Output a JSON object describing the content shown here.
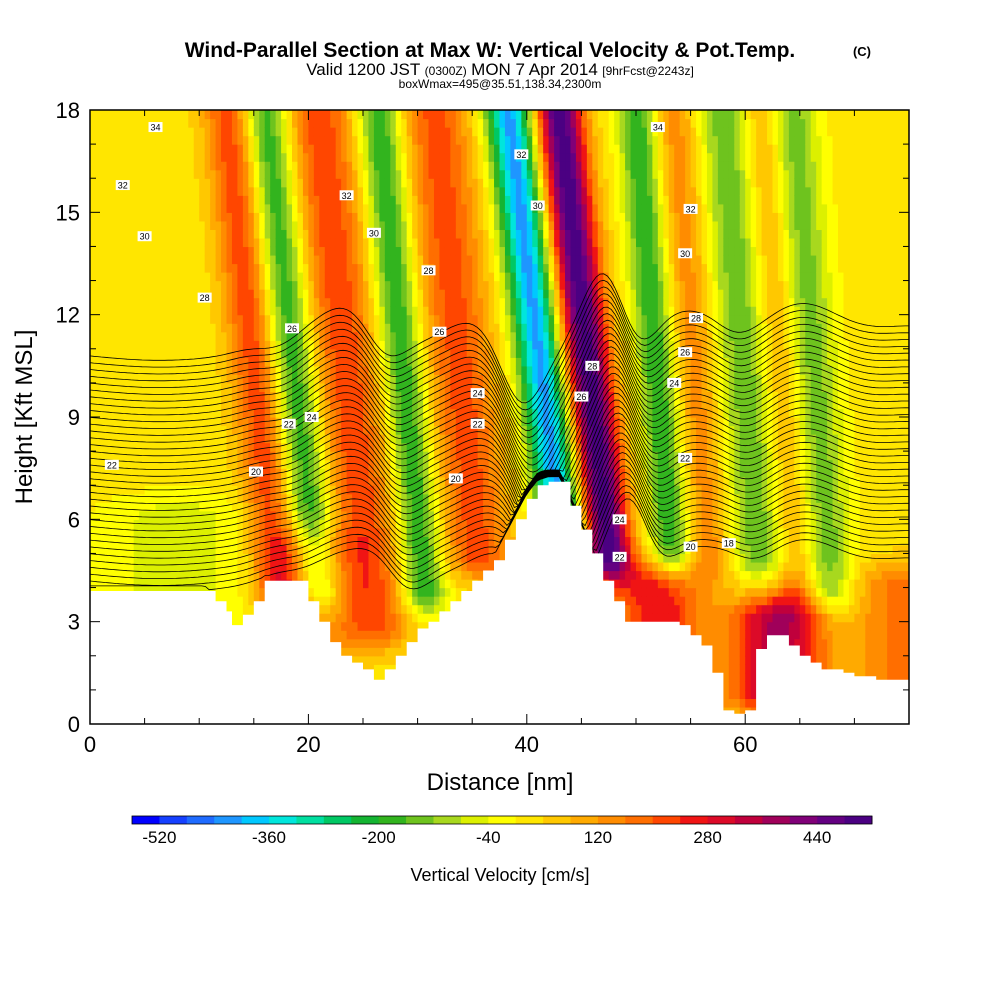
{
  "chart_data": {
    "type": "heatmap",
    "title": "Wind-Parallel Section at Max W: Vertical Velocity & Pot.Temp.",
    "title_tag": "(C)",
    "subtitle_main": "Valid 1200 JST",
    "subtitle_utc": "(0300Z)",
    "subtitle_date": "MON 7 Apr 2014",
    "subtitle_fcst": "[9hrFcst@2243z]",
    "subtitle2": "boxWmax=495@35.51,138.34,2300m",
    "xlabel": "Distance [nm]",
    "ylabel": "Height [Kft MSL]",
    "xlim": [
      0,
      75
    ],
    "ylim": [
      0,
      18
    ],
    "xticks": [
      "0",
      "20",
      "40",
      "60"
    ],
    "yticks": [
      "0",
      "3",
      "6",
      "9",
      "12",
      "15",
      "18"
    ],
    "colorbar": {
      "label": "Vertical Velocity [cm/s]",
      "min": -560,
      "max": 520,
      "step": 40,
      "ticks": [
        "-520",
        "-360",
        "-200",
        "-40",
        "120",
        "280",
        "440"
      ],
      "colors": [
        "#0000ff",
        "#1540ff",
        "#1f6bff",
        "#1e96ff",
        "#00c8ff",
        "#00e6dc",
        "#00dfa0",
        "#00c864",
        "#14b432",
        "#32b41e",
        "#6ec31e",
        "#a8d81e",
        "#dcf000",
        "#ffff00",
        "#ffe600",
        "#ffc800",
        "#ffaa00",
        "#ff8c00",
        "#ff6e00",
        "#ff4600",
        "#f01414",
        "#dc0a28",
        "#c0003c",
        "#a0005a",
        "#800078",
        "#640082",
        "#4b0082"
      ]
    },
    "velocity_features": [
      {
        "x": 17,
        "w": 580,
        "zlo": 4,
        "zhi": 18,
        "sigma": 1.6,
        "tilt": 0.34,
        "amp": 210,
        "type": "updraft"
      },
      {
        "x": 20.5,
        "w": 600,
        "zlo": 4,
        "zhi": 18,
        "sigma": 1.5,
        "tilt": 0.34,
        "amp": -230,
        "type": "downdraft"
      },
      {
        "x": 25.3,
        "w": 600,
        "zlo": 3,
        "zhi": 18,
        "sigma": 2.2,
        "tilt": 0.34,
        "amp": 210,
        "type": "updraft"
      },
      {
        "x": 30.3,
        "w": 560,
        "zlo": 4,
        "zhi": 18,
        "sigma": 1.4,
        "tilt": 0.3,
        "amp": -230,
        "type": "downdraft"
      },
      {
        "x": 35.5,
        "w": 600,
        "zlo": 5,
        "zhi": 18,
        "sigma": 2.2,
        "tilt": 0.3,
        "amp": 200,
        "type": "updraft"
      },
      {
        "x": 43.5,
        "w": 560,
        "zlo": 6,
        "zhi": 18,
        "sigma": 1.5,
        "tilt": 0.4,
        "amp": -440,
        "type": "downdraft"
      },
      {
        "x": 47.5,
        "w": 480,
        "zlo": 5,
        "zhi": 18,
        "sigma": 1.5,
        "tilt": 0.35,
        "amp": 495,
        "type": "updraft"
      },
      {
        "x": 53.3,
        "w": 560,
        "zlo": 5,
        "zhi": 18,
        "sigma": 1.3,
        "tilt": 0.25,
        "amp": -220,
        "type": "downdraft"
      },
      {
        "x": 56.8,
        "w": 580,
        "zlo": 5,
        "zhi": 18,
        "sigma": 1.5,
        "tilt": 0.25,
        "amp": 130,
        "type": "updraft"
      },
      {
        "x": 61.5,
        "w": 580,
        "zlo": 5,
        "zhi": 18,
        "sigma": 2.0,
        "tilt": 0.25,
        "amp": -180,
        "type": "downdraft"
      },
      {
        "x": 64.5,
        "w": 580,
        "zlo": 4,
        "zhi": 18,
        "sigma": 1.5,
        "tilt": 0.25,
        "amp": 130,
        "type": "updraft"
      },
      {
        "x": 67.5,
        "w": 580,
        "zlo": 4,
        "zhi": 18,
        "sigma": 1.6,
        "tilt": 0.25,
        "amp": -170,
        "type": "downdraft"
      },
      {
        "x": 20,
        "w": 300,
        "zlo": 1,
        "zhi": 5,
        "sigma": 2.5,
        "tilt": 0,
        "amp": 150,
        "type": "updraft"
      },
      {
        "x": 52,
        "w": 400,
        "zlo": 1,
        "zhi": 4,
        "sigma": 3,
        "tilt": 0,
        "amp": 260,
        "type": "updraft"
      },
      {
        "x": 63,
        "w": 350,
        "zlo": 1,
        "zhi": 3,
        "sigma": 3,
        "tilt": 0,
        "amp": 350,
        "type": "updraft"
      },
      {
        "x": 74,
        "w": 350,
        "zlo": 1,
        "zhi": 4,
        "sigma": 3,
        "tilt": 0,
        "amp": 150,
        "type": "updraft"
      },
      {
        "x": 8,
        "w": 300,
        "zlo": 3,
        "zhi": 6,
        "sigma": 5,
        "tilt": 0,
        "amp": -80,
        "type": "downdraft"
      }
    ],
    "terrain": {
      "x": [
        0,
        10.5,
        11.5,
        12.5,
        13,
        14,
        15,
        16,
        19,
        20,
        21,
        22,
        23,
        24,
        25,
        26,
        27,
        28,
        29,
        30,
        31,
        32,
        33,
        34,
        35,
        36,
        37,
        38,
        39,
        40,
        41,
        42,
        43,
        44,
        45,
        46,
        47,
        48,
        49,
        50,
        51,
        52,
        53,
        54,
        55,
        56,
        57,
        58,
        59,
        60,
        61,
        62,
        63,
        64,
        65,
        66,
        67,
        68,
        69,
        70,
        71,
        72,
        73,
        74,
        75
      ],
      "h": [
        3.9,
        3.9,
        3.6,
        3.3,
        2.9,
        3.2,
        3.6,
        4.2,
        4.2,
        3.6,
        3.0,
        2.4,
        2.0,
        1.8,
        1.6,
        1.3,
        1.6,
        2.0,
        2.4,
        2.8,
        3.0,
        3.3,
        3.6,
        3.9,
        4.2,
        4.5,
        4.8,
        5.4,
        6.0,
        6.6,
        7.0,
        7.1,
        7.1,
        6.4,
        5.7,
        5.0,
        4.2,
        3.6,
        3.0,
        3.0,
        3.0,
        3.0,
        3.0,
        2.9,
        2.6,
        2.3,
        1.5,
        0.4,
        0.3,
        0.4,
        2.2,
        2.6,
        2.6,
        2.3,
        2.0,
        1.8,
        1.6,
        1.6,
        1.5,
        1.4,
        1.4,
        1.3,
        1.3,
        1.3,
        1.3
      ]
    },
    "theta_contours": {
      "levels": [
        18,
        18.5,
        19,
        19.5,
        20,
        20.5,
        21,
        21.5,
        22,
        22.5,
        23,
        23.5,
        24,
        24.5,
        25,
        25.5,
        26,
        26.5,
        27,
        27.5,
        28,
        28.5,
        29,
        29.5,
        30,
        30.5,
        31,
        31.5,
        32,
        32.5,
        33,
        33.5,
        34,
        34.5,
        35
      ],
      "labels": [
        {
          "text": "34",
          "x": 6,
          "y": 17.5
        },
        {
          "text": "32",
          "x": 3,
          "y": 15.8
        },
        {
          "text": "30",
          "x": 5,
          "y": 14.3
        },
        {
          "text": "28",
          "x": 10.5,
          "y": 12.5
        },
        {
          "text": "26",
          "x": 18.5,
          "y": 11.6
        },
        {
          "text": "22",
          "x": 18.2,
          "y": 8.8
        },
        {
          "text": "24",
          "x": 20.3,
          "y": 9.0
        },
        {
          "text": "20",
          "x": 15.2,
          "y": 7.4
        },
        {
          "text": "22",
          "x": 2,
          "y": 7.6
        },
        {
          "text": "32",
          "x": 23.5,
          "y": 15.5
        },
        {
          "text": "30",
          "x": 26,
          "y": 14.4
        },
        {
          "text": "28",
          "x": 31,
          "y": 13.3
        },
        {
          "text": "26",
          "x": 32,
          "y": 11.5
        },
        {
          "text": "24",
          "x": 35.5,
          "y": 9.7
        },
        {
          "text": "22",
          "x": 35.5,
          "y": 8.8
        },
        {
          "text": "20",
          "x": 33.5,
          "y": 7.2
        },
        {
          "text": "32",
          "x": 39.5,
          "y": 16.7
        },
        {
          "text": "30",
          "x": 41,
          "y": 15.2
        },
        {
          "text": "28",
          "x": 46,
          "y": 10.5
        },
        {
          "text": "26",
          "x": 45,
          "y": 9.6
        },
        {
          "text": "24",
          "x": 48.5,
          "y": 6.0
        },
        {
          "text": "22",
          "x": 48.5,
          "y": 4.9
        },
        {
          "text": "34",
          "x": 52,
          "y": 17.5
        },
        {
          "text": "32",
          "x": 55,
          "y": 15.1
        },
        {
          "text": "30",
          "x": 54.5,
          "y": 13.8
        },
        {
          "text": "28",
          "x": 55.5,
          "y": 11.9
        },
        {
          "text": "26",
          "x": 54.5,
          "y": 10.9
        },
        {
          "text": "24",
          "x": 53.5,
          "y": 10.0
        },
        {
          "text": "22",
          "x": 54.5,
          "y": 7.8
        },
        {
          "text": "20",
          "x": 55,
          "y": 5.2
        },
        {
          "text": "18",
          "x": 58.5,
          "y": 5.3
        }
      ]
    }
  }
}
